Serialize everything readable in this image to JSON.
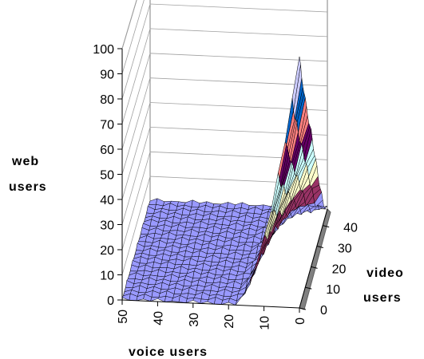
{
  "chart_data": {
    "type": "surface",
    "title": "",
    "zlabel_lines": [
      "web",
      "users"
    ],
    "xlabel": "voice users",
    "ylabel_lines": [
      "video",
      "users"
    ],
    "z_ticks": [
      0,
      10,
      20,
      30,
      40,
      50,
      60,
      70,
      80,
      90,
      100
    ],
    "zlim": [
      0,
      100
    ],
    "voice_ticks": [
      50,
      40,
      30,
      20,
      10,
      0
    ],
    "voice_range": [
      0,
      50
    ],
    "video_ticks": [
      0,
      10,
      20,
      30,
      40
    ],
    "video_range": [
      0,
      48
    ],
    "grid": true,
    "legend": "none",
    "band_colors": [
      "#9999ff",
      "#993366",
      "#ffffcc",
      "#ccffff",
      "#660066",
      "#ff8080",
      "#0066cc",
      "#ccccff",
      "#cc66cc"
    ],
    "surface_profile": {
      "description_free": true,
      "video_users": [
        0,
        4,
        8,
        12,
        16,
        20,
        24,
        28,
        32,
        36,
        40,
        44,
        48
      ],
      "max_web_users_at_voice_0": [
        100,
        88,
        80,
        70,
        62,
        54,
        45,
        36,
        27,
        18,
        10,
        4,
        0
      ]
    }
  }
}
